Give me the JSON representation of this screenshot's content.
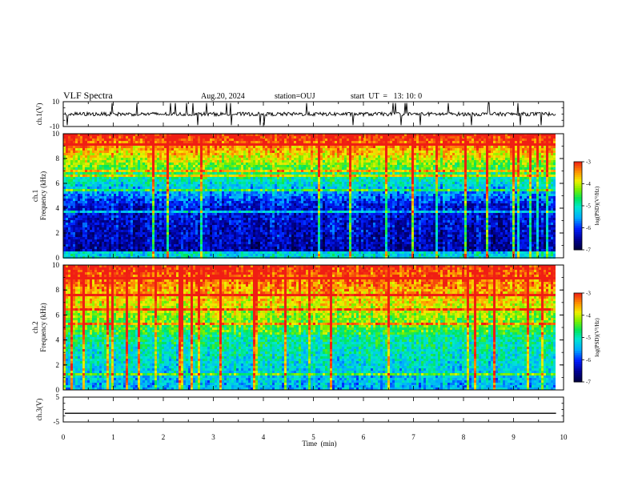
{
  "header": {
    "title": "VLF Spectra",
    "date": "Aug.20, 2024",
    "station": "station=OUJ",
    "start": "start  UT  =   13: 10: 0"
  },
  "chart_data": [
    {
      "id": "ch1-waveform",
      "type": "line",
      "ylabel": "ch.1(V)",
      "ylim": [
        -10,
        10
      ],
      "ytick_labels": [
        "10",
        "-10"
      ],
      "xlim": [
        0,
        10
      ],
      "baseline": 0,
      "data_extent_min": 9.85,
      "grid": false
    },
    {
      "id": "ch1-spectrogram",
      "type": "heatmap",
      "ylabel": "ch.1\nFrequency  (kHz)",
      "ylim": [
        0,
        10
      ],
      "ytick_labels": [
        "0",
        "2",
        "4",
        "6",
        "8",
        "10"
      ],
      "xlim": [
        0,
        10
      ],
      "data_extent_min": 9.85,
      "colorbar": {
        "label": "log(PSD)(V²/Hz)",
        "range": [
          -7,
          -3
        ],
        "tick_labels": [
          "-3",
          "-4",
          "-5",
          "-6",
          "-7"
        ]
      }
    },
    {
      "id": "ch2-spectrogram",
      "type": "heatmap",
      "ylabel": "ch.2\nFrequency  (kHz)",
      "ylim": [
        0,
        10
      ],
      "ytick_labels": [
        "0",
        "2",
        "4",
        "6",
        "8",
        "10"
      ],
      "xlim": [
        0,
        10
      ],
      "data_extent_min": 9.85,
      "colorbar": {
        "label": "log(PSD)(V²/Hz)",
        "range": [
          -7,
          -3
        ],
        "tick_labels": [
          "-3",
          "-4",
          "-5",
          "-6",
          "-7"
        ]
      }
    },
    {
      "id": "ch3-waveform",
      "type": "line",
      "ylabel": "ch.3(V)",
      "ylim": [
        -5,
        5
      ],
      "ytick_labels": [
        "5",
        "-5"
      ],
      "xlim": [
        0,
        10
      ],
      "baseline": -1.5,
      "data_extent_min": 9.85,
      "grid": false
    }
  ],
  "x_axis": {
    "label": "Time  (min)",
    "range": [
      0,
      10
    ],
    "tick_labels": [
      "0",
      "1",
      "2",
      "3",
      "4",
      "5",
      "6",
      "7",
      "8",
      "9",
      "10"
    ]
  }
}
